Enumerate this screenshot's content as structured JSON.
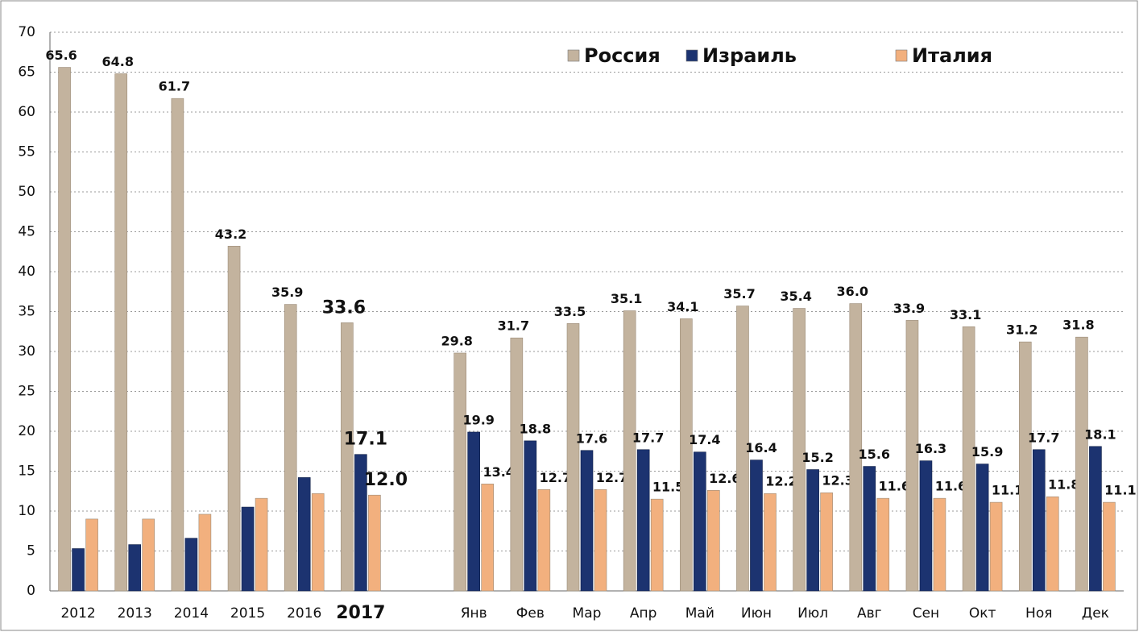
{
  "chart_data": {
    "type": "bar",
    "categories": [
      "2012",
      "2013",
      "2014",
      "2015",
      "2016",
      "2017",
      null,
      "Янв",
      "Фев",
      "Мар",
      "Апр",
      "Май",
      "Июн",
      "Июл",
      "Авг",
      "Сен",
      "Окт",
      "Ноя",
      "Дек"
    ],
    "series": [
      {
        "name": "Россия",
        "color": "#c3b39e",
        "values": [
          65.6,
          64.8,
          61.7,
          43.2,
          35.9,
          33.6,
          null,
          29.8,
          31.7,
          33.5,
          35.1,
          34.1,
          35.7,
          35.4,
          36.0,
          33.9,
          33.1,
          31.2,
          31.8
        ],
        "value_labels": [
          "65.6",
          "64.8",
          "61.7",
          "43.2",
          "35.9",
          "33.6",
          null,
          "29.8",
          "31.7",
          "33.5",
          "35.1",
          "34.1",
          "35.7",
          "35.4",
          "36.0",
          "33.9",
          "33.1",
          "31.2",
          "31.8"
        ]
      },
      {
        "name": "Израиль",
        "color": "#1c3370",
        "values": [
          5.3,
          5.8,
          6.6,
          10.5,
          14.2,
          17.1,
          null,
          19.9,
          18.8,
          17.6,
          17.7,
          17.4,
          16.4,
          15.2,
          15.6,
          16.3,
          15.9,
          17.7,
          18.1
        ],
        "value_labels": [
          null,
          null,
          null,
          null,
          null,
          "17.1",
          null,
          "19.9",
          "18.8",
          "17.6",
          "17.7",
          "17.4",
          "16.4",
          "15.2",
          "15.6",
          "16.3",
          "15.9",
          "17.7",
          "18.1"
        ]
      },
      {
        "name": "Италия",
        "color": "#f2b07e",
        "values": [
          9.0,
          9.0,
          9.6,
          11.6,
          12.2,
          12.0,
          null,
          13.4,
          12.7,
          12.7,
          11.5,
          12.6,
          12.2,
          12.3,
          11.6,
          11.6,
          11.1,
          11.8,
          11.1
        ],
        "value_labels": [
          null,
          null,
          null,
          null,
          null,
          "12.0",
          null,
          "13.4",
          "12.7",
          "12.7",
          "11.5",
          "12.6",
          "12.2",
          "12.3",
          "11.6",
          "11.6",
          "11.1",
          "11.8",
          "11.1"
        ]
      }
    ],
    "ylim": [
      0,
      70
    ],
    "yticks": [
      0,
      5,
      10,
      15,
      20,
      25,
      30,
      35,
      40,
      45,
      50,
      55,
      60,
      65,
      70
    ],
    "grid": true,
    "legend": "top-right"
  }
}
